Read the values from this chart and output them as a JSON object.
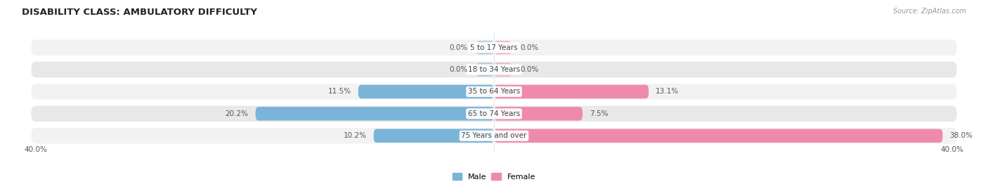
{
  "title": "DISABILITY CLASS: AMBULATORY DIFFICULTY",
  "source": "Source: ZipAtlas.com",
  "categories": [
    "5 to 17 Years",
    "18 to 34 Years",
    "35 to 64 Years",
    "65 to 74 Years",
    "75 Years and over"
  ],
  "male_values": [
    0.0,
    0.0,
    11.5,
    20.2,
    10.2
  ],
  "female_values": [
    0.0,
    0.0,
    13.1,
    7.5,
    38.0
  ],
  "max_val": 40.0,
  "male_color": "#7ab4d8",
  "female_color": "#f08aaa",
  "row_bg_light": "#f2f2f2",
  "row_bg_dark": "#e8e8e8",
  "row_border": "#d8d8d8",
  "label_color": "#444444",
  "value_color": "#555555",
  "title_color": "#222222",
  "source_color": "#999999",
  "legend_male": "Male",
  "legend_female": "Female",
  "background_color": "#ffffff",
  "title_fontsize": 9.5,
  "label_fontsize": 7.5,
  "value_fontsize": 7.5
}
